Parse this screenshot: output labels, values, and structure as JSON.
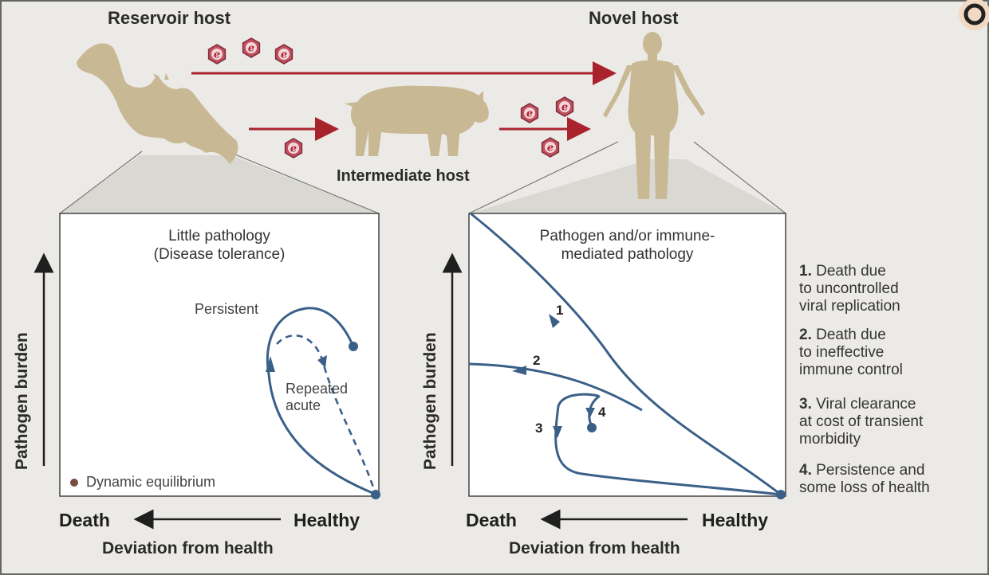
{
  "hosts": {
    "reservoir": "Reservoir host",
    "novel": "Novel host",
    "intermediate": "Intermediate host"
  },
  "left_panel": {
    "title_line1": "Little pathology",
    "title_line2": "(Disease tolerance)",
    "curve_persistent": "Persistent",
    "curve_repeated_line1": "Repeated",
    "curve_repeated_line2": "acute",
    "legend_dynamic": "Dynamic equilibrium",
    "y_axis": "Pathogen burden",
    "x_left": "Death",
    "x_right": "Healthy",
    "x_axis": "Deviation from health"
  },
  "right_panel": {
    "title_line1": "Pathogen and/or immune-",
    "title_line2": "mediated pathology",
    "curve_numbers": [
      "1",
      "2",
      "3",
      "4"
    ],
    "y_axis": "Pathogen burden",
    "x_left": "Death",
    "x_right": "Healthy",
    "x_axis": "Deviation from health"
  },
  "outcomes": [
    {
      "num": "1.",
      "lines": [
        "Death due",
        "to uncontrolled",
        "viral replication"
      ]
    },
    {
      "num": "2.",
      "lines": [
        "Death due",
        "to ineffective",
        "immune control"
      ]
    },
    {
      "num": "3.",
      "lines": [
        "Viral clearance",
        "at cost of transient",
        "morbidity"
      ]
    },
    {
      "num": "4.",
      "lines": [
        "Persistence and",
        "some loss of health"
      ]
    }
  ],
  "virus_symbol": "e",
  "colors": {
    "background": "#ebeae6",
    "panel_bg": "#ffffff",
    "curve_blue": "#3a6088",
    "arrow_red": "#a8232c",
    "animal_tan": "#c8b894",
    "virus_pink": "#c0505f",
    "equilibrium_dot": "#7a4b3f"
  },
  "icons": [
    "bat-icon",
    "pig-icon",
    "human-icon",
    "virus-icon"
  ]
}
